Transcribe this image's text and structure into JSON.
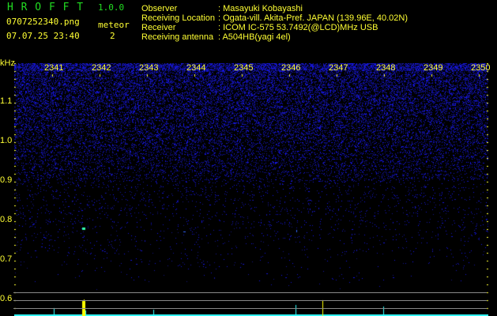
{
  "app": {
    "name": "H R O F F T",
    "version": "1.0.0"
  },
  "file": {
    "name": "0707252340.png",
    "datetime": "07.07.25 23:40"
  },
  "meteor": {
    "label": "meteor",
    "count": "2"
  },
  "info": [
    {
      "label": "Observer",
      "value": ": Masayuki Kobayashi"
    },
    {
      "label": "Receiving Location",
      "value": ": Ogata-vill. Akita-Pref. JAPAN (139.96E, 40.02N)"
    },
    {
      "label": "Receiver",
      "value": ": ICOM IC-575 53.7492(@LCD)MHz USB"
    },
    {
      "label": "Receiving antenna",
      "value": ": A504HB(yagi 4el)"
    }
  ],
  "axis": {
    "y_unit": "kHz",
    "y_ticks": [
      "1.1",
      "1.0",
      "0.9",
      "0.8",
      "0.7",
      "0.6"
    ],
    "x_ticks": [
      "2341",
      "2342",
      "2343",
      "2344",
      "2345",
      "2346",
      "2347",
      "2348",
      "2349",
      "2350"
    ]
  },
  "colors": {
    "text": "#ffff33",
    "title": "#22dd22",
    "noise": "#1a1aff",
    "detection": "#33ffff",
    "peak": "#ffff00"
  }
}
